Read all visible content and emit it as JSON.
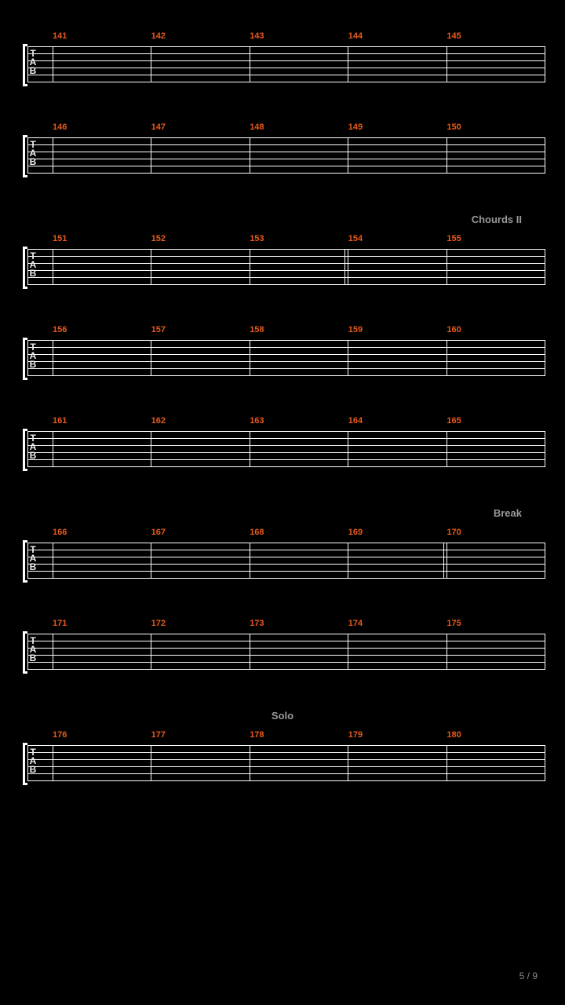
{
  "colors": {
    "background": "#000000",
    "measure_number": "#e85a1a",
    "section_label": "#999999",
    "staff_line": "#ffffff",
    "tab_text": "#eeeeee"
  },
  "tab_letters": [
    "T",
    "A",
    "B"
  ],
  "staff_lines_count": 6,
  "measures_per_row": 5,
  "rows": [
    {
      "section": "",
      "section_pos": "",
      "start": 141,
      "nums": [
        "141",
        "142",
        "143",
        "144",
        "145"
      ],
      "dbl": []
    },
    {
      "section": "",
      "section_pos": "",
      "start": 146,
      "nums": [
        "146",
        "147",
        "148",
        "149",
        "150"
      ],
      "dbl": []
    },
    {
      "section": "Chourds II",
      "section_pos": "right",
      "start": 151,
      "nums": [
        "151",
        "152",
        "153",
        "154",
        "155"
      ],
      "dbl": [
        2
      ]
    },
    {
      "section": "",
      "section_pos": "",
      "start": 156,
      "nums": [
        "156",
        "157",
        "158",
        "159",
        "160"
      ],
      "dbl": []
    },
    {
      "section": "",
      "section_pos": "",
      "start": 161,
      "nums": [
        "161",
        "162",
        "163",
        "164",
        "165"
      ],
      "dbl": []
    },
    {
      "section": "Break",
      "section_pos": "right",
      "start": 166,
      "nums": [
        "166",
        "167",
        "168",
        "169",
        "170"
      ],
      "dbl": [
        3
      ]
    },
    {
      "section": "",
      "section_pos": "",
      "start": 171,
      "nums": [
        "171",
        "172",
        "173",
        "174",
        "175"
      ],
      "dbl": []
    },
    {
      "section": "Solo",
      "section_pos": "center",
      "start": 176,
      "nums": [
        "176",
        "177",
        "178",
        "179",
        "180"
      ],
      "dbl": []
    }
  ],
  "page_number": "5 / 9"
}
